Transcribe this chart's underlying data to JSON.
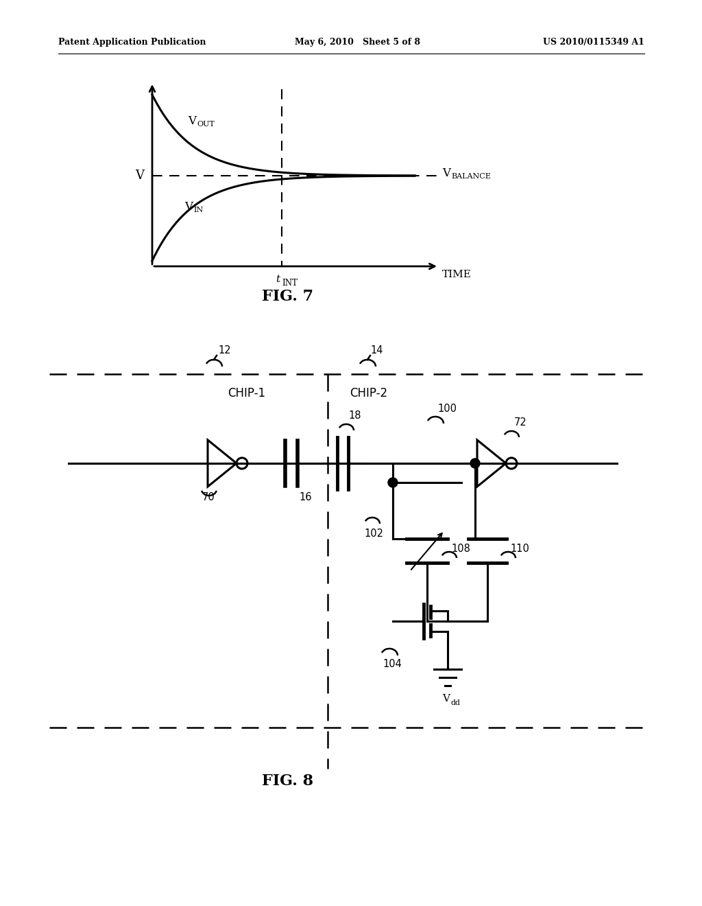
{
  "bg_color": "#ffffff",
  "header_left": "Patent Application Publication",
  "header_center": "May 6, 2010   Sheet 5 of 8",
  "header_right": "US 2010/0115349 A1",
  "fig7_label": "FIG. 7",
  "fig8_label": "FIG. 8",
  "graph_xlabel": "TIME",
  "graph_ylabel": "V",
  "t_int_label": "t",
  "t_int_sub": "INT",
  "vout_label": "V",
  "vout_sub": "OUT",
  "vin_label": "V",
  "vin_sub": "IN",
  "vbal_label": "V",
  "vbal_sub": "BALANCE",
  "chip1_label": "CHIP-1",
  "chip2_label": "CHIP-2",
  "ref12": "12",
  "ref14": "14",
  "ref16": "16",
  "ref18": "18",
  "ref70": "70",
  "ref72": "72",
  "ref100": "100",
  "ref102": "102",
  "ref104": "104",
  "ref108": "108",
  "ref110": "110",
  "vdd_label": "V",
  "vdd_sub": "dd"
}
